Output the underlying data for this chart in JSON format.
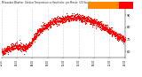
{
  "title_text": "Milwaukee Weather  Outdoor Temperature vs Heat Index  per Minute  (24 Hours)",
  "background_color": "#ffffff",
  "plot_bg_color": "#ffffff",
  "legend_temp_color": "#ff8800",
  "legend_hi_color": "#ff0000",
  "scatter_color": "#ff0000",
  "scatter_size": 0.8,
  "ylim": [
    55,
    95
  ],
  "ytick_values": [
    60,
    70,
    80,
    90
  ],
  "num_points": 1440,
  "seed": 42,
  "vline_positions": [
    0,
    180,
    360,
    540,
    720,
    900,
    1080,
    1260,
    1440
  ],
  "vline_color": "#aaaaaa",
  "vline_style": ":"
}
